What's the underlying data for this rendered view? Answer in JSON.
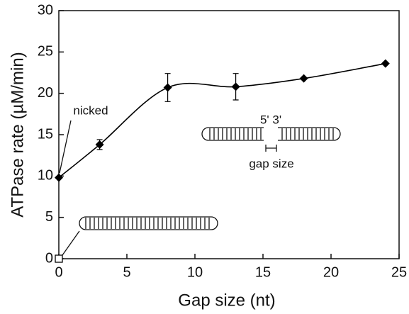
{
  "chart_data": {
    "type": "line",
    "x_label": "Gap size (nt)",
    "y_label": "ATPase rate (µM/min)",
    "xlim": [
      0,
      25
    ],
    "xticks": [
      0,
      5,
      10,
      15,
      20,
      25
    ],
    "ylim": [
      0,
      30
    ],
    "yticks": [
      0,
      5,
      10,
      15,
      20,
      25,
      30
    ],
    "series": [
      {
        "x": [
          0,
          3,
          8,
          13,
          18,
          24
        ],
        "values": [
          9.8,
          13.8,
          20.7,
          20.8,
          21.8,
          23.6
        ],
        "errors": [
          null,
          0.6,
          1.7,
          1.6,
          null,
          null
        ],
        "color": "#000000",
        "marker": "diamond",
        "line": "smooth"
      },
      {
        "x": [
          0
        ],
        "values": [
          0
        ],
        "errors": [
          null
        ],
        "color": "#000000",
        "marker": "square",
        "line": "none"
      }
    ],
    "annotations": [
      "nicked",
      "5' 3'",
      "gap size"
    ]
  }
}
